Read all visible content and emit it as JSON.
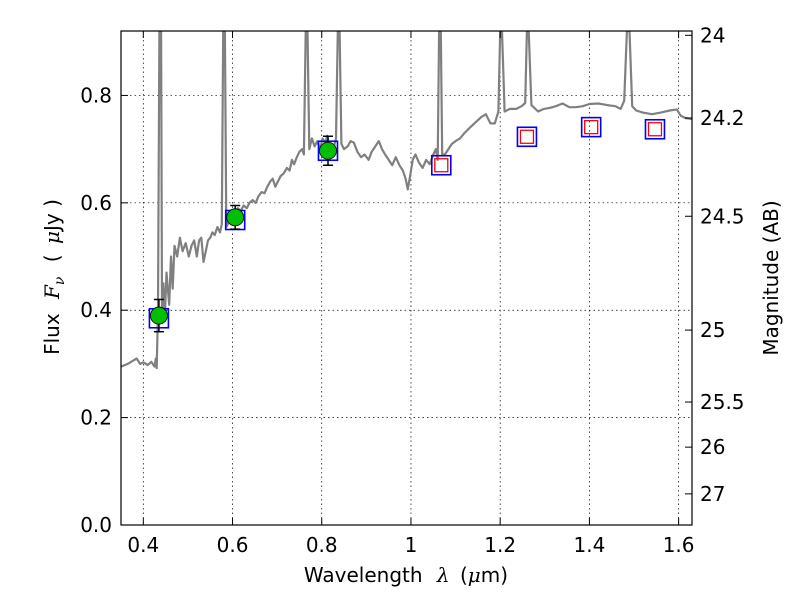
{
  "chart_data": {
    "type": "scatter",
    "xlabel": {
      "prefix": "Wavelength",
      "symbol": "λ",
      "unit_open": "(",
      "unit_sym": "μ",
      "unit_rest": "m)"
    },
    "ylabel": {
      "prefix": "Flux",
      "symbol": "F",
      "sub": "ν",
      "unit_open": "(",
      "unit_sym": "μ",
      "unit_rest": "Jy )"
    },
    "y2label": "Magnitude (AB)",
    "xlim": [
      0.35,
      1.63
    ],
    "ylim": [
      0.0,
      0.92
    ],
    "grid": true,
    "x_ticks": [
      {
        "value": 0.4,
        "label": "0.4"
      },
      {
        "value": 0.6,
        "label": "0.6"
      },
      {
        "value": 0.8,
        "label": "0.8"
      },
      {
        "value": 1.0,
        "label": "1"
      },
      {
        "value": 1.2,
        "label": "1.2"
      },
      {
        "value": 1.4,
        "label": "1.4"
      },
      {
        "value": 1.6,
        "label": "1.6"
      }
    ],
    "y_ticks": [
      {
        "value": 0.0,
        "label": "0.0"
      },
      {
        "value": 0.2,
        "label": "0.2"
      },
      {
        "value": 0.4,
        "label": "0.4"
      },
      {
        "value": 0.6,
        "label": "0.6"
      },
      {
        "value": 0.8,
        "label": "0.8"
      }
    ],
    "mag_ticks": [
      {
        "flux": 0.912,
        "label": "24"
      },
      {
        "flux": 0.758,
        "label": "24.2"
      },
      {
        "flux": 0.575,
        "label": "24.5"
      },
      {
        "flux": 0.363,
        "label": "25"
      },
      {
        "flux": 0.229,
        "label": "25.5"
      },
      {
        "flux": 0.145,
        "label": "26"
      },
      {
        "flux": 0.058,
        "label": "27"
      }
    ],
    "series": [
      {
        "kind": "spectrum",
        "color": "#808080",
        "points": [
          [
            0.35,
            0.295
          ],
          [
            0.365,
            0.3
          ],
          [
            0.375,
            0.305
          ],
          [
            0.385,
            0.31
          ],
          [
            0.393,
            0.3
          ],
          [
            0.4,
            0.303
          ],
          [
            0.41,
            0.298
          ],
          [
            0.418,
            0.304
          ],
          [
            0.425,
            0.295
          ],
          [
            0.428,
            0.31
          ],
          [
            0.43,
            0.292
          ],
          [
            0.433,
            0.4
          ],
          [
            0.436,
            0.92
          ],
          [
            0.44,
            0.92
          ],
          [
            0.442,
            0.4
          ],
          [
            0.445,
            0.45
          ],
          [
            0.448,
            0.38
          ],
          [
            0.452,
            0.47
          ],
          [
            0.458,
            0.41
          ],
          [
            0.462,
            0.5
          ],
          [
            0.466,
            0.44
          ],
          [
            0.47,
            0.52
          ],
          [
            0.476,
            0.5
          ],
          [
            0.482,
            0.535
          ],
          [
            0.488,
            0.51
          ],
          [
            0.495,
            0.525
          ],
          [
            0.502,
            0.5
          ],
          [
            0.508,
            0.52
          ],
          [
            0.514,
            0.53
          ],
          [
            0.52,
            0.5
          ],
          [
            0.525,
            0.53
          ],
          [
            0.53,
            0.535
          ],
          [
            0.535,
            0.49
          ],
          [
            0.54,
            0.51
          ],
          [
            0.545,
            0.53
          ],
          [
            0.55,
            0.535
          ],
          [
            0.555,
            0.545
          ],
          [
            0.56,
            0.54
          ],
          [
            0.566,
            0.555
          ],
          [
            0.572,
            0.545
          ],
          [
            0.576,
            0.56
          ],
          [
            0.579,
            0.92
          ],
          [
            0.583,
            0.92
          ],
          [
            0.586,
            0.555
          ],
          [
            0.592,
            0.565
          ],
          [
            0.598,
            0.575
          ],
          [
            0.605,
            0.58
          ],
          [
            0.612,
            0.59
          ],
          [
            0.618,
            0.585
          ],
          [
            0.625,
            0.595
          ],
          [
            0.632,
            0.59
          ],
          [
            0.638,
            0.6
          ],
          [
            0.645,
            0.605
          ],
          [
            0.652,
            0.6
          ],
          [
            0.658,
            0.612
          ],
          [
            0.665,
            0.62
          ],
          [
            0.672,
            0.618
          ],
          [
            0.678,
            0.63
          ],
          [
            0.685,
            0.64
          ],
          [
            0.69,
            0.645
          ],
          [
            0.696,
            0.63
          ],
          [
            0.702,
            0.64
          ],
          [
            0.708,
            0.65
          ],
          [
            0.715,
            0.655
          ],
          [
            0.722,
            0.665
          ],
          [
            0.728,
            0.66
          ],
          [
            0.733,
            0.68
          ],
          [
            0.738,
            0.672
          ],
          [
            0.744,
            0.685
          ],
          [
            0.75,
            0.695
          ],
          [
            0.756,
            0.7
          ],
          [
            0.76,
            0.69
          ],
          [
            0.764,
            0.92
          ],
          [
            0.768,
            0.92
          ],
          [
            0.772,
            0.7
          ],
          [
            0.778,
            0.72
          ],
          [
            0.784,
            0.705
          ],
          [
            0.79,
            0.715
          ],
          [
            0.796,
            0.7
          ],
          [
            0.802,
            0.72
          ],
          [
            0.808,
            0.71
          ],
          [
            0.812,
            0.725
          ],
          [
            0.816,
            0.71
          ],
          [
            0.82,
            0.705
          ],
          [
            0.826,
            0.7
          ],
          [
            0.832,
            0.72
          ],
          [
            0.836,
            0.92
          ],
          [
            0.84,
            0.92
          ],
          [
            0.844,
            0.71
          ],
          [
            0.85,
            0.7
          ],
          [
            0.858,
            0.705
          ],
          [
            0.865,
            0.715
          ],
          [
            0.872,
            0.712
          ],
          [
            0.88,
            0.695
          ],
          [
            0.888,
            0.685
          ],
          [
            0.896,
            0.69
          ],
          [
            0.905,
            0.68
          ],
          [
            0.912,
            0.695
          ],
          [
            0.92,
            0.705
          ],
          [
            0.928,
            0.715
          ],
          [
            0.935,
            0.7
          ],
          [
            0.942,
            0.69
          ],
          [
            0.95,
            0.68
          ],
          [
            0.958,
            0.67
          ],
          [
            0.966,
            0.685
          ],
          [
            0.974,
            0.67
          ],
          [
            0.982,
            0.66
          ],
          [
            0.988,
            0.645
          ],
          [
            0.993,
            0.625
          ],
          [
            0.998,
            0.65
          ],
          [
            1.004,
            0.68
          ],
          [
            1.01,
            0.69
          ],
          [
            1.018,
            0.675
          ],
          [
            1.026,
            0.665
          ],
          [
            1.034,
            0.68
          ],
          [
            1.042,
            0.672
          ],
          [
            1.05,
            0.69
          ],
          [
            1.056,
            0.7
          ],
          [
            1.06,
            0.68
          ],
          [
            1.063,
            0.92
          ],
          [
            1.067,
            0.92
          ],
          [
            1.07,
            0.69
          ],
          [
            1.076,
            0.69
          ],
          [
            1.084,
            0.7
          ],
          [
            1.092,
            0.71
          ],
          [
            1.1,
            0.715
          ],
          [
            1.11,
            0.72
          ],
          [
            1.12,
            0.73
          ],
          [
            1.132,
            0.74
          ],
          [
            1.145,
            0.75
          ],
          [
            1.158,
            0.76
          ],
          [
            1.168,
            0.765
          ],
          [
            1.178,
            0.748
          ],
          [
            1.188,
            0.748
          ],
          [
            1.196,
            0.77
          ],
          [
            1.2,
            0.92
          ],
          [
            1.204,
            0.92
          ],
          [
            1.21,
            0.77
          ],
          [
            1.222,
            0.775
          ],
          [
            1.236,
            0.775
          ],
          [
            1.248,
            0.78
          ],
          [
            1.256,
            0.786
          ],
          [
            1.26,
            0.92
          ],
          [
            1.264,
            0.92
          ],
          [
            1.27,
            0.782
          ],
          [
            1.285,
            0.77
          ],
          [
            1.298,
            0.775
          ],
          [
            1.312,
            0.777
          ],
          [
            1.325,
            0.78
          ],
          [
            1.34,
            0.785
          ],
          [
            1.355,
            0.778
          ],
          [
            1.37,
            0.778
          ],
          [
            1.385,
            0.78
          ],
          [
            1.4,
            0.784
          ],
          [
            1.42,
            0.785
          ],
          [
            1.44,
            0.782
          ],
          [
            1.458,
            0.78
          ],
          [
            1.47,
            0.775
          ],
          [
            1.478,
            0.79
          ],
          [
            1.484,
            0.92
          ],
          [
            1.49,
            0.92
          ],
          [
            1.496,
            0.78
          ],
          [
            1.505,
            0.772
          ],
          [
            1.52,
            0.768
          ],
          [
            1.54,
            0.765
          ],
          [
            1.56,
            0.768
          ],
          [
            1.58,
            0.772
          ],
          [
            1.596,
            0.774
          ],
          [
            1.605,
            0.762
          ],
          [
            1.615,
            0.758
          ],
          [
            1.63,
            0.756
          ]
        ]
      },
      {
        "kind": "observed",
        "color": "#00bf00",
        "points": [
          {
            "x": 0.435,
            "y": 0.39,
            "err": 0.03
          },
          {
            "x": 0.606,
            "y": 0.573,
            "err": 0.022
          },
          {
            "x": 0.814,
            "y": 0.697,
            "err": 0.027
          }
        ]
      },
      {
        "kind": "model-band-flux",
        "color": "#0000ff",
        "points": [
          {
            "x": 0.435,
            "y": 0.385
          },
          {
            "x": 0.606,
            "y": 0.568
          },
          {
            "x": 0.814,
            "y": 0.697
          },
          {
            "x": 1.068,
            "y": 0.67
          },
          {
            "x": 1.26,
            "y": 0.723
          },
          {
            "x": 1.404,
            "y": 0.741
          },
          {
            "x": 1.547,
            "y": 0.737
          }
        ]
      },
      {
        "kind": "upper-marker",
        "color": "#ff0000",
        "points": [
          {
            "x": 1.068,
            "y": 0.67
          },
          {
            "x": 1.26,
            "y": 0.723
          },
          {
            "x": 1.404,
            "y": 0.741
          },
          {
            "x": 1.547,
            "y": 0.737
          }
        ]
      }
    ]
  }
}
